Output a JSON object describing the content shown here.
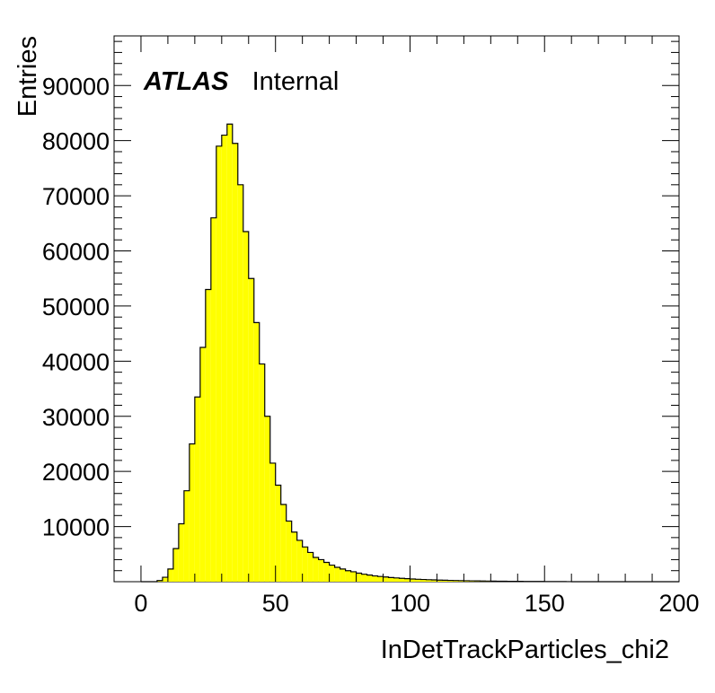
{
  "chart_data": {
    "type": "histogram",
    "xlabel": "InDetTrackParticles_chi2",
    "ylabel": "Entries",
    "xlim": [
      -10,
      200
    ],
    "ylim": [
      0,
      99000
    ],
    "bin_width": 2,
    "x_ticks": [
      "0",
      "50",
      "100",
      "150",
      "200"
    ],
    "x_tick_values": [
      0,
      50,
      100,
      150,
      200
    ],
    "y_ticks": [
      "10000",
      "20000",
      "30000",
      "40000",
      "50000",
      "60000",
      "70000",
      "80000",
      "90000"
    ],
    "y_tick_values": [
      10000,
      20000,
      30000,
      40000,
      50000,
      60000,
      70000,
      80000,
      90000
    ],
    "bin_edges_start": 0,
    "values": [
      0,
      0,
      0,
      200,
      800,
      2300,
      6000,
      10500,
      16500,
      25000,
      33500,
      42500,
      53000,
      66000,
      79000,
      81000,
      83000,
      79500,
      72000,
      63500,
      55000,
      47000,
      39500,
      30000,
      21500,
      17500,
      14000,
      11000,
      9000,
      7500,
      6300,
      5300,
      4400,
      4000,
      3500,
      3000,
      2600,
      2300,
      2000,
      1800,
      1550,
      1350,
      1200,
      1050,
      950,
      850,
      750,
      680,
      610,
      550,
      490,
      440,
      400,
      360,
      320,
      290,
      260,
      235,
      210,
      190,
      170,
      155,
      140,
      125,
      112,
      100,
      90,
      80,
      72,
      65,
      58,
      52,
      46,
      40,
      35,
      30,
      25,
      20,
      15,
      10,
      5,
      3,
      2,
      1,
      1,
      0,
      0,
      0,
      0,
      0,
      0,
      0,
      0,
      0,
      0,
      0,
      0,
      0,
      0,
      0
    ],
    "fill_color": "#ffff00",
    "line_color": "#000000",
    "grid": false,
    "legend": "none",
    "annotation": {
      "bold": "ATLAS",
      "normal": "Internal"
    }
  }
}
